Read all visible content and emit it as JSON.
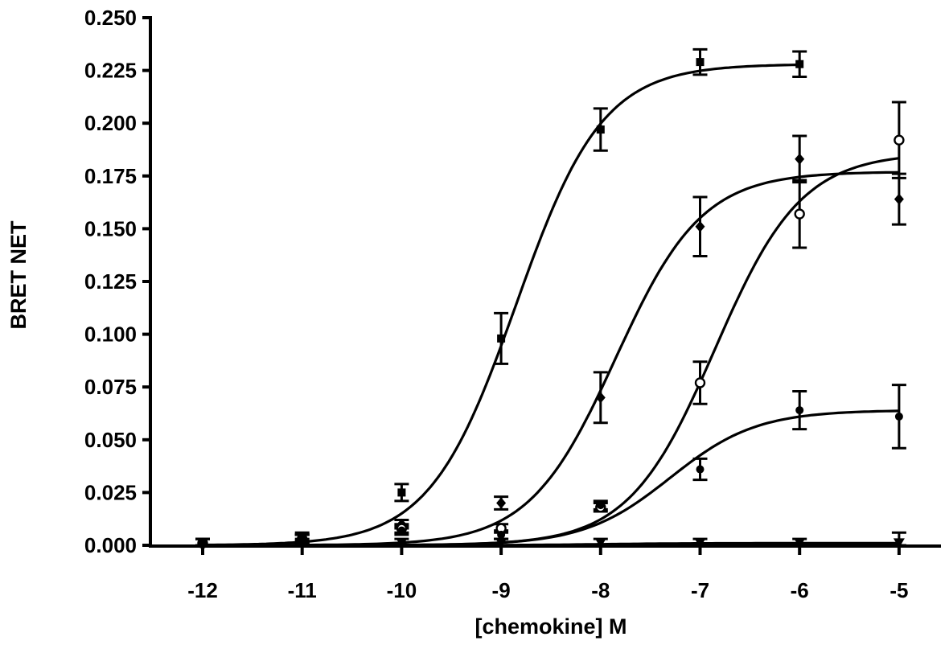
{
  "chart_data": {
    "type": "scatter",
    "title": "",
    "xlabel": "[chemokine] M",
    "ylabel": "BRET NET",
    "xlim": [
      -12.3,
      -4.6
    ],
    "ylim": [
      0,
      0.25
    ],
    "x_ticks": [
      -12,
      -11,
      -10,
      -9,
      -8,
      -7,
      -6,
      -5
    ],
    "x_tick_labels": [
      "-12",
      "-11",
      "-10",
      "-9",
      "-8",
      "-7",
      "-6",
      "-5"
    ],
    "y_ticks": [
      0,
      0.025,
      0.05,
      0.075,
      0.1,
      0.125,
      0.15,
      0.175,
      0.2,
      0.225,
      0.25
    ],
    "y_tick_labels": [
      "0.000",
      "0.025",
      "0.050",
      "0.075",
      "0.100",
      "0.125",
      "0.150",
      "0.175",
      "0.200",
      "0.225",
      "0.250"
    ],
    "grid": false,
    "legend": "none",
    "series": [
      {
        "marker": "square",
        "x": [
          -12,
          -11,
          -10,
          -9,
          -8,
          -7,
          -6
        ],
        "y": [
          0.001,
          0.004,
          0.025,
          0.098,
          0.197,
          0.229,
          0.228
        ],
        "err": [
          0.002,
          0.002,
          0.004,
          0.012,
          0.01,
          0.006,
          0.006
        ],
        "fit": {
          "bottom": 0,
          "top": 0.228,
          "logEC50": -8.85,
          "hill": 1.0
        }
      },
      {
        "marker": "diamond",
        "x": [
          -12,
          -11,
          -10,
          -9,
          -8,
          -7,
          -6,
          -5
        ],
        "y": [
          0.001,
          0.003,
          0.01,
          0.02,
          0.07,
          0.151,
          0.183,
          0.164
        ],
        "err": [
          0.002,
          0.002,
          0.002,
          0.003,
          0.012,
          0.014,
          0.011,
          0.012
        ],
        "fit": {
          "bottom": 0,
          "top": 0.177,
          "logEC50": -7.85,
          "hill": 1.0
        }
      },
      {
        "marker": "open-circle",
        "x": [
          -12,
          -11,
          -10,
          -9,
          -8,
          -7,
          -6,
          -5
        ],
        "y": [
          0.001,
          0.003,
          0.008,
          0.008,
          0.018,
          0.077,
          0.157,
          0.192
        ],
        "err": [
          0.002,
          0.002,
          0.002,
          0.002,
          0.002,
          0.01,
          0.016,
          0.018
        ],
        "fit": {
          "bottom": 0,
          "top": 0.186,
          "logEC50": -6.85,
          "hill": 1.0
        }
      },
      {
        "marker": "filled-circle",
        "x": [
          -12,
          -11,
          -10,
          -9,
          -8,
          -7,
          -6,
          -5
        ],
        "y": [
          0.001,
          0.003,
          0.007,
          0.005,
          0.019,
          0.036,
          0.064,
          0.061
        ],
        "err": [
          0.002,
          0.002,
          0.002,
          0.002,
          0.002,
          0.005,
          0.009,
          0.015
        ],
        "fit": {
          "bottom": 0,
          "top": 0.064,
          "logEC50": -7.3,
          "hill": 1.0
        }
      },
      {
        "marker": "triangle-down",
        "x": [
          -12,
          -11,
          -10,
          -9,
          -8,
          -7,
          -6,
          -5
        ],
        "y": [
          0.001,
          0.001,
          0.001,
          0.001,
          0.001,
          0.001,
          0.001,
          0.001
        ],
        "err": [
          0.002,
          0.002,
          0.002,
          0.002,
          0.002,
          0.002,
          0.002,
          0.005
        ],
        "fit": {
          "bottom": 0,
          "top": 0.001,
          "logEC50": -8.0,
          "hill": 1.0
        }
      }
    ]
  }
}
